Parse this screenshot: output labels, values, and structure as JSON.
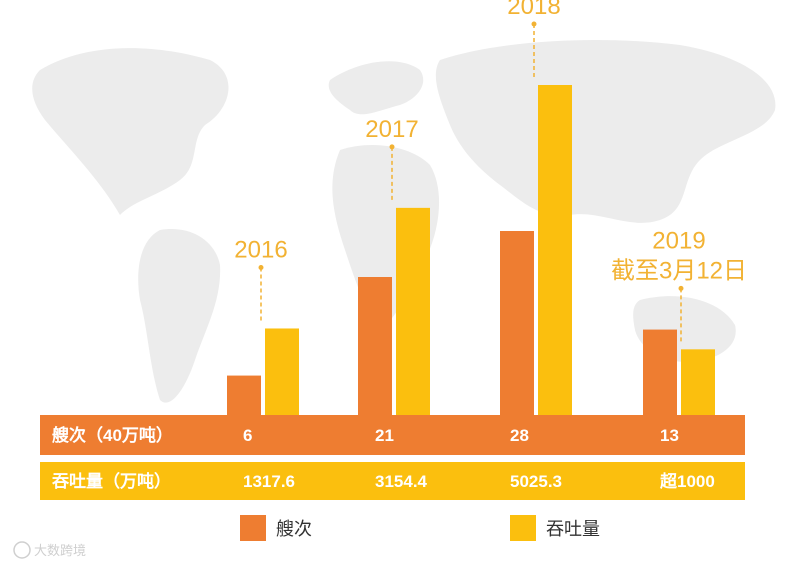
{
  "colors": {
    "ships": "#ee7d31",
    "throughput": "#fbbf0e",
    "label": "#f2b233",
    "map": "#ececec"
  },
  "chart_data": {
    "type": "bar",
    "categories": [
      "2016",
      "2017",
      "2018",
      "2019"
    ],
    "category_labels": [
      [
        "2016"
      ],
      [
        "2017"
      ],
      [
        "2018"
      ],
      [
        "2019",
        "截至3月12日"
      ]
    ],
    "series": [
      {
        "name": "艘次",
        "values": [
          6,
          21,
          28,
          13
        ],
        "display": [
          "6",
          "21",
          "28",
          "13"
        ]
      },
      {
        "name": "吞吐量",
        "values": [
          1317.6,
          3154.4,
          5025.3,
          1000
        ],
        "display": [
          "1317.6",
          "3154.4",
          "5025.3",
          "超1000"
        ]
      }
    ],
    "row_labels": [
      "艘次（40万吨）",
      "吞吐量（万吨）"
    ],
    "legend": [
      "艘次",
      "吞吐量"
    ],
    "legend_position": "bottom",
    "title": "",
    "xlabel": "",
    "ylabel": "",
    "grid": false
  },
  "watermark": "大数跨境"
}
